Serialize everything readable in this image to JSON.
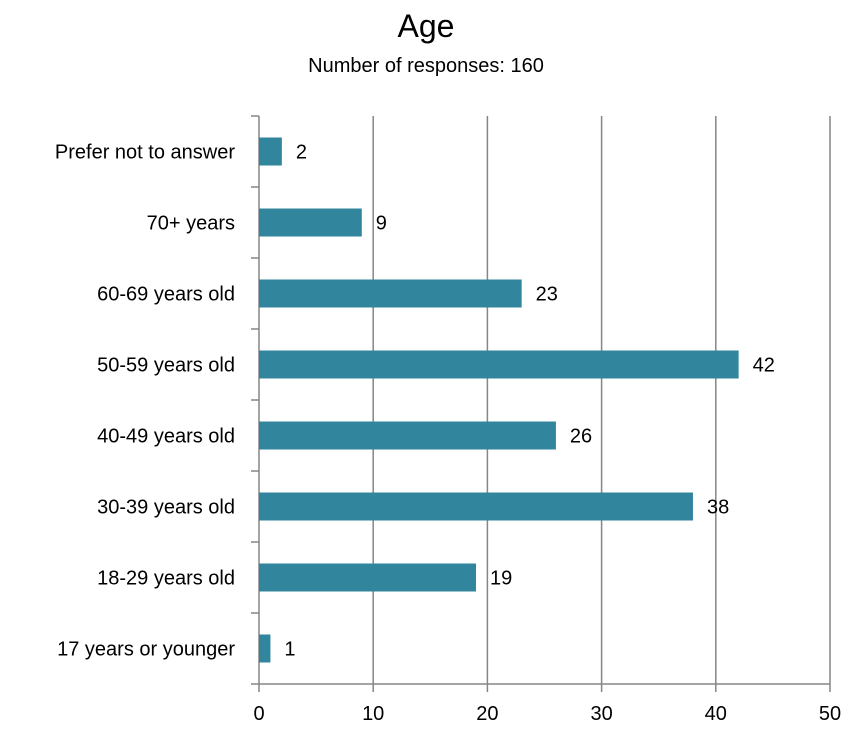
{
  "chart_data": {
    "type": "bar",
    "orientation": "horizontal",
    "title": "Age",
    "subtitle": "Number of responses: 160",
    "categories": [
      "17 years or younger",
      "18-29 years old",
      "30-39 years old",
      "40-49 years old",
      "50-59 years old",
      "60-69 years old",
      "70+ years",
      "Prefer not to answer"
    ],
    "values": [
      1,
      19,
      38,
      26,
      42,
      23,
      9,
      2
    ],
    "xlim": [
      0,
      50
    ],
    "xticks": [
      "0",
      "10",
      "20",
      "30",
      "40",
      "50"
    ],
    "grid": true,
    "legend": "none",
    "bar_color": "#31859C",
    "gridline_color": "#868686"
  }
}
